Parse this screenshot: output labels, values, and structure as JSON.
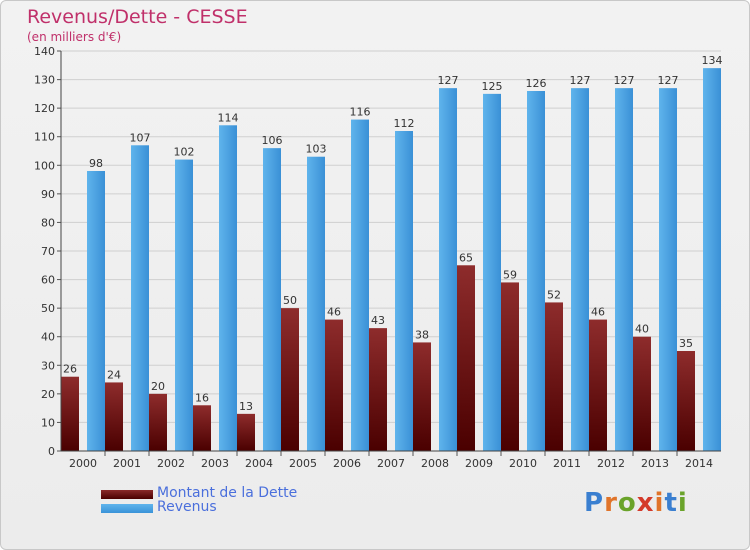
{
  "header": {
    "title": "Revenus/Dette - CESSE",
    "subtitle": "(en milliers d'€)"
  },
  "legend": {
    "items": [
      {
        "label": "Montant de la Dette",
        "color": "#6b1a1a"
      },
      {
        "label": "Revenus",
        "color": "#4aa3e6"
      }
    ]
  },
  "logo": {
    "text": "Proxiti",
    "colors": [
      "#3a7fd0",
      "#e0742a",
      "#6aa32a",
      "#d43a2a",
      "#e0742a",
      "#3a7fd0",
      "#6aa32a"
    ]
  },
  "chart_data": {
    "type": "bar",
    "categories": [
      "2000",
      "2001",
      "2002",
      "2003",
      "2004",
      "2005",
      "2006",
      "2007",
      "2008",
      "2009",
      "2010",
      "2011",
      "2012",
      "2013",
      "2014"
    ],
    "series": [
      {
        "name": "Montant de la Dette",
        "values": [
          26,
          24,
          20,
          16,
          13,
          50,
          46,
          43,
          38,
          65,
          59,
          52,
          46,
          40,
          35
        ],
        "color": "#6b1a1a"
      },
      {
        "name": "Revenus",
        "values": [
          98,
          107,
          102,
          114,
          106,
          103,
          116,
          112,
          127,
          125,
          126,
          127,
          127,
          127,
          134
        ],
        "color": "#4aa3e6"
      }
    ],
    "ylim": [
      0,
      140
    ],
    "yticks": [
      0,
      10,
      20,
      30,
      40,
      50,
      60,
      70,
      80,
      90,
      100,
      110,
      120,
      130,
      140
    ],
    "grid": true
  }
}
